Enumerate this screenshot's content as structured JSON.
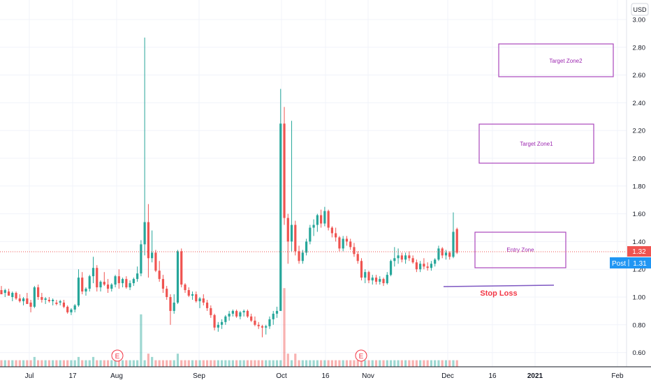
{
  "currency_button": "USD",
  "y_ticks": [
    "3.00",
    "2.80",
    "2.60",
    "2.40",
    "2.20",
    "2.00",
    "1.80",
    "1.60",
    "1.40",
    "1.20",
    "1.00",
    "0.80",
    "0.60"
  ],
  "x_ticks": [
    "Jul",
    "17",
    "Aug",
    "Sep",
    "Oct",
    "16",
    "Nov",
    "Dec",
    "16",
    "2021",
    "Feb"
  ],
  "price_tag_last": "1.32",
  "post_tag": {
    "label": "Post",
    "value": "1.31"
  },
  "earnings_marker": "E",
  "annotations": {
    "target_zone2": "Target Zone2",
    "target_zone1": "Target Zone1",
    "entry_zone": "Entry Zone",
    "stop_loss": "Stop Loss"
  },
  "colors": {
    "up": "#26a69a",
    "down": "#ef5350",
    "zone_border": "#ab47bc",
    "zone_text": "#9c27b0",
    "stop_line": "#7e57c2",
    "stop_text": "#f23645",
    "price_line": "#ef5350",
    "post_tag": "#2196f3",
    "earnings": "#f23645"
  },
  "chart_data": {
    "type": "candlestick",
    "currency": "USD",
    "ylim": [
      0.52,
      3.06
    ],
    "y_ticks": [
      3.0,
      2.8,
      2.6,
      2.4,
      2.2,
      2.0,
      1.8,
      1.6,
      1.4,
      1.2,
      1.0,
      0.8,
      0.6
    ],
    "x_tick_labels": [
      "Jul",
      "17",
      "Aug",
      "Sep",
      "Oct",
      "16",
      "Nov",
      "Dec",
      "16",
      "2021",
      "Feb"
    ],
    "last_price": 1.32,
    "post_market_price": 1.31,
    "candles": [
      [
        1.05,
        1.08,
        1.02,
        1.02
      ],
      [
        1.03,
        1.06,
        1.0,
        1.05
      ],
      [
        1.04,
        1.06,
        1.01,
        1.01
      ],
      [
        1.0,
        1.04,
        0.97,
        1.03
      ],
      [
        1.03,
        1.04,
        0.98,
        0.99
      ],
      [
        0.99,
        1.02,
        0.96,
        0.97
      ],
      [
        0.97,
        1.0,
        0.94,
        0.99
      ],
      [
        0.99,
        1.03,
        0.96,
        0.95
      ],
      [
        0.96,
        0.98,
        0.89,
        0.93
      ],
      [
        0.93,
        1.08,
        0.92,
        1.07
      ],
      [
        1.07,
        1.09,
        0.98,
        1.0
      ],
      [
        1.0,
        1.03,
        0.96,
        0.98
      ],
      [
        0.98,
        1.0,
        0.95,
        0.99
      ],
      [
        0.98,
        1.0,
        0.96,
        0.97
      ],
      [
        0.97,
        0.99,
        0.94,
        0.98
      ],
      [
        0.96,
        0.98,
        0.94,
        0.95
      ],
      [
        0.96,
        0.98,
        0.94,
        0.97
      ],
      [
        0.96,
        0.98,
        0.92,
        0.93
      ],
      [
        0.93,
        0.94,
        0.88,
        0.89
      ],
      [
        0.89,
        0.92,
        0.87,
        0.91
      ],
      [
        0.91,
        0.95,
        0.89,
        0.94
      ],
      [
        0.94,
        1.2,
        0.93,
        1.14
      ],
      [
        1.14,
        1.18,
        1.02,
        1.04
      ],
      [
        1.04,
        1.07,
        1.01,
        1.06
      ],
      [
        1.06,
        1.16,
        1.04,
        1.15
      ],
      [
        1.15,
        1.29,
        1.1,
        1.21
      ],
      [
        1.21,
        1.23,
        1.04,
        1.07
      ],
      [
        1.07,
        1.12,
        1.04,
        1.11
      ],
      [
        1.11,
        1.18,
        1.08,
        1.09
      ],
      [
        1.09,
        1.13,
        1.03,
        1.06
      ],
      [
        1.06,
        1.1,
        1.04,
        1.09
      ],
      [
        1.09,
        1.16,
        1.07,
        1.15
      ],
      [
        1.15,
        1.2,
        1.06,
        1.1
      ],
      [
        1.1,
        1.14,
        1.07,
        1.13
      ],
      [
        1.13,
        1.15,
        1.06,
        1.07
      ],
      [
        1.07,
        1.12,
        1.05,
        1.1
      ],
      [
        1.1,
        1.14,
        1.08,
        1.13
      ],
      [
        1.13,
        1.22,
        1.11,
        1.17
      ],
      [
        1.17,
        1.41,
        1.15,
        1.38
      ],
      [
        1.38,
        2.87,
        1.3,
        1.54
      ],
      [
        1.54,
        1.67,
        1.14,
        1.28
      ],
      [
        1.28,
        1.48,
        1.25,
        1.32
      ],
      [
        1.32,
        1.34,
        1.18,
        1.19
      ],
      [
        1.19,
        1.26,
        1.11,
        1.13
      ],
      [
        1.13,
        1.16,
        1.03,
        1.06
      ],
      [
        1.06,
        1.08,
        0.98,
        1.0
      ],
      [
        1.0,
        1.02,
        0.8,
        0.9
      ],
      [
        0.9,
        1.02,
        0.88,
        0.96
      ],
      [
        0.96,
        1.34,
        0.95,
        1.33
      ],
      [
        1.33,
        1.35,
        1.07,
        1.09
      ],
      [
        1.09,
        1.1,
        1.03,
        1.05
      ],
      [
        1.05,
        1.07,
        1.0,
        1.01
      ],
      [
        1.01,
        1.04,
        0.98,
        1.02
      ],
      [
        1.02,
        1.04,
        0.96,
        0.97
      ],
      [
        0.97,
        1.0,
        0.92,
        0.99
      ],
      [
        0.99,
        1.02,
        0.94,
        0.96
      ],
      [
        0.96,
        0.98,
        0.9,
        0.92
      ],
      [
        0.92,
        0.94,
        0.85,
        0.87
      ],
      [
        0.87,
        0.88,
        0.76,
        0.78
      ],
      [
        0.78,
        0.82,
        0.75,
        0.8
      ],
      [
        0.8,
        0.84,
        0.77,
        0.82
      ],
      [
        0.82,
        0.87,
        0.8,
        0.86
      ],
      [
        0.86,
        0.9,
        0.83,
        0.88
      ],
      [
        0.88,
        0.91,
        0.86,
        0.9
      ],
      [
        0.9,
        0.91,
        0.85,
        0.86
      ],
      [
        0.86,
        0.9,
        0.84,
        0.89
      ],
      [
        0.89,
        0.91,
        0.86,
        0.9
      ],
      [
        0.9,
        0.91,
        0.85,
        0.86
      ],
      [
        0.86,
        0.88,
        0.82,
        0.83
      ],
      [
        0.83,
        0.86,
        0.79,
        0.8
      ],
      [
        0.8,
        0.82,
        0.77,
        0.79
      ],
      [
        0.79,
        0.8,
        0.71,
        0.78
      ],
      [
        0.78,
        0.8,
        0.73,
        0.79
      ],
      [
        0.79,
        0.86,
        0.77,
        0.84
      ],
      [
        0.84,
        0.9,
        0.8,
        0.88
      ],
      [
        0.88,
        0.93,
        0.85,
        0.9
      ],
      [
        0.9,
        2.5,
        0.9,
        2.25
      ],
      [
        2.25,
        2.37,
        1.52,
        1.57
      ],
      [
        1.57,
        1.6,
        1.24,
        1.4
      ],
      [
        1.4,
        2.27,
        1.33,
        1.52
      ],
      [
        1.52,
        1.55,
        1.3,
        1.33
      ],
      [
        1.33,
        1.37,
        1.24,
        1.26
      ],
      [
        1.26,
        1.34,
        1.24,
        1.32
      ],
      [
        1.32,
        1.42,
        1.3,
        1.4
      ],
      [
        1.4,
        1.52,
        1.38,
        1.5
      ],
      [
        1.5,
        1.56,
        1.44,
        1.52
      ],
      [
        1.52,
        1.6,
        1.47,
        1.59
      ],
      [
        1.59,
        1.63,
        1.5,
        1.53
      ],
      [
        1.53,
        1.65,
        1.51,
        1.62
      ],
      [
        1.62,
        1.63,
        1.48,
        1.5
      ],
      [
        1.5,
        1.51,
        1.43,
        1.46
      ],
      [
        1.46,
        1.5,
        1.4,
        1.43
      ],
      [
        1.43,
        1.44,
        1.33,
        1.35
      ],
      [
        1.35,
        1.44,
        1.33,
        1.42
      ],
      [
        1.42,
        1.44,
        1.37,
        1.4
      ],
      [
        1.4,
        1.42,
        1.34,
        1.36
      ],
      [
        1.36,
        1.39,
        1.29,
        1.31
      ],
      [
        1.31,
        1.33,
        1.24,
        1.26
      ],
      [
        1.26,
        1.28,
        1.12,
        1.14
      ],
      [
        1.14,
        1.2,
        1.1,
        1.18
      ],
      [
        1.18,
        1.19,
        1.1,
        1.12
      ],
      [
        1.12,
        1.16,
        1.09,
        1.14
      ],
      [
        1.14,
        1.16,
        1.09,
        1.11
      ],
      [
        1.11,
        1.15,
        1.09,
        1.13
      ],
      [
        1.13,
        1.14,
        1.08,
        1.1
      ],
      [
        1.1,
        1.18,
        1.09,
        1.16
      ],
      [
        1.16,
        1.27,
        1.15,
        1.26
      ],
      [
        1.26,
        1.36,
        1.22,
        1.28
      ],
      [
        1.28,
        1.35,
        1.24,
        1.3
      ],
      [
        1.3,
        1.32,
        1.25,
        1.27
      ],
      [
        1.27,
        1.32,
        1.24,
        1.3
      ],
      [
        1.3,
        1.33,
        1.26,
        1.28
      ],
      [
        1.28,
        1.3,
        1.24,
        1.25
      ],
      [
        1.25,
        1.27,
        1.18,
        1.2
      ],
      [
        1.2,
        1.26,
        1.18,
        1.24
      ],
      [
        1.24,
        1.28,
        1.2,
        1.22
      ],
      [
        1.22,
        1.25,
        1.19,
        1.21
      ],
      [
        1.21,
        1.26,
        1.19,
        1.24
      ],
      [
        1.24,
        1.28,
        1.22,
        1.27
      ],
      [
        1.27,
        1.37,
        1.26,
        1.35
      ],
      [
        1.35,
        1.36,
        1.28,
        1.3
      ],
      [
        1.3,
        1.34,
        1.27,
        1.32
      ],
      [
        1.32,
        1.33,
        1.27,
        1.29
      ],
      [
        1.29,
        1.61,
        1.28,
        1.47
      ],
      [
        1.49,
        1.5,
        1.31,
        1.32
      ]
    ],
    "volume_relative": [
      0.02,
      0.02,
      0.02,
      0.02,
      0.02,
      0.02,
      0.02,
      0.02,
      0.02,
      0.03,
      0.02,
      0.02,
      0.02,
      0.02,
      0.02,
      0.02,
      0.02,
      0.02,
      0.02,
      0.02,
      0.02,
      0.03,
      0.02,
      0.02,
      0.02,
      0.03,
      0.02,
      0.02,
      0.02,
      0.02,
      0.02,
      0.02,
      0.02,
      0.02,
      0.02,
      0.02,
      0.02,
      0.02,
      0.16,
      0.02,
      0.04,
      0.03,
      0.02,
      0.02,
      0.02,
      0.02,
      0.02,
      0.02,
      0.04,
      0.02,
      0.02,
      0.02,
      0.02,
      0.02,
      0.02,
      0.02,
      0.02,
      0.02,
      0.02,
      0.02,
      0.02,
      0.02,
      0.02,
      0.02,
      0.02,
      0.02,
      0.02,
      0.02,
      0.02,
      0.02,
      0.02,
      0.02,
      0.02,
      0.02,
      0.02,
      0.02,
      0.02,
      0.24,
      0.04,
      0.02,
      0.04,
      0.02,
      0.02,
      0.02,
      0.02,
      0.02,
      0.02,
      0.02,
      0.02,
      0.02,
      0.02,
      0.02,
      0.02,
      0.02,
      0.02,
      0.02,
      0.02,
      0.02,
      0.02,
      0.02,
      0.02,
      0.02,
      0.02,
      0.02,
      0.02,
      0.02,
      0.02,
      0.02,
      0.02,
      0.02,
      0.02,
      0.02,
      0.02,
      0.02,
      0.02,
      0.02,
      0.02,
      0.02,
      0.02,
      0.02,
      0.02,
      0.02,
      0.02,
      0.02,
      0.02,
      0.02,
      0.02,
      0.02,
      0.02
    ],
    "annotations": [
      {
        "label": "Target Zone2",
        "kind": "rectangle",
        "price_low": 2.58,
        "price_high": 2.82
      },
      {
        "label": "Target Zone1",
        "kind": "rectangle",
        "price_low": 1.96,
        "price_high": 2.24
      },
      {
        "label": "Entry Zone",
        "kind": "rectangle",
        "price_low": 1.2,
        "price_high": 1.46
      },
      {
        "label": "Stop Loss",
        "kind": "line",
        "price": 1.07
      },
      {
        "label": "E",
        "kind": "earnings_marker"
      },
      {
        "label": "E",
        "kind": "earnings_marker"
      }
    ]
  }
}
